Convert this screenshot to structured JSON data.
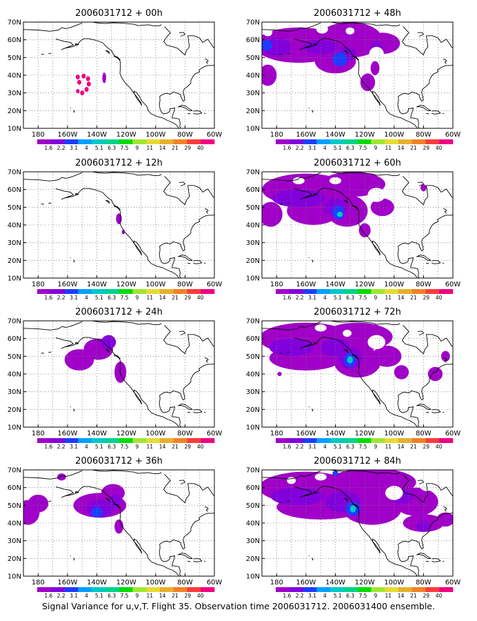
{
  "caption": "Signal Variance for u,v,T. Flight 35. Observation time 2006031712. 2006031400 ensemble.",
  "chart_data": {
    "type": "contour-map",
    "lat_ticks": [
      "70N",
      "60N",
      "50N",
      "40N",
      "30N",
      "20N",
      "10N"
    ],
    "lon_ticks": [
      "180",
      "160W",
      "140W",
      "120W",
      "100W",
      "80W",
      "60W"
    ],
    "xlim": [
      -190,
      -60
    ],
    "ylim": [
      10,
      70
    ],
    "grid": "dotted",
    "colorbar": {
      "labels": [
        "1.6",
        "2.2",
        "3.1",
        "4",
        "5.1",
        "6.3",
        "7.5",
        "9",
        "11",
        "14",
        "21",
        "29",
        "40"
      ],
      "colors": [
        "#a000c8",
        "#8200dc",
        "#1e3cff",
        "#00a0ff",
        "#00c8c8",
        "#00d28c",
        "#00dc00",
        "#a0e632",
        "#e6dc32",
        "#e6af2d",
        "#f08228",
        "#fa3c3c",
        "#f00082"
      ]
    },
    "panels": [
      {
        "title": "2006031712 + 00h",
        "lead": 0,
        "blobs": [
          {
            "lon": -152,
            "lat": 36,
            "rx": 1.4,
            "ry": 1.4,
            "level": 12
          },
          {
            "lon": -153,
            "lat": 39,
            "rx": 1.4,
            "ry": 1.4,
            "level": 12
          },
          {
            "lon": -149,
            "lat": 39.5,
            "rx": 1.4,
            "ry": 1.4,
            "level": 12
          },
          {
            "lon": -146,
            "lat": 38,
            "rx": 1.4,
            "ry": 1.4,
            "level": 12
          },
          {
            "lon": -145.5,
            "lat": 35,
            "rx": 1.4,
            "ry": 1.4,
            "level": 12
          },
          {
            "lon": -147,
            "lat": 32,
            "rx": 1.4,
            "ry": 1.4,
            "level": 12
          },
          {
            "lon": -150,
            "lat": 30,
            "rx": 1.4,
            "ry": 1.4,
            "level": 12
          },
          {
            "lon": -153,
            "lat": 31,
            "rx": 1.2,
            "ry": 1.2,
            "level": 12
          },
          {
            "lon": -135,
            "lat": 38.5,
            "rx": 1.3,
            "ry": 3,
            "level": 0
          }
        ]
      },
      {
        "title": "2006031712 + 12h",
        "lead": 12,
        "blobs": [
          {
            "lon": -125,
            "lat": 43.5,
            "rx": 2,
            "ry": 3,
            "level": 0
          },
          {
            "lon": -122,
            "lat": 36,
            "rx": 1,
            "ry": 1.3,
            "level": 0
          }
        ]
      },
      {
        "title": "2006031712 + 24h",
        "lead": 24,
        "blobs": [
          {
            "lon": -152,
            "lat": 48,
            "rx": 10,
            "ry": 6,
            "level": 0
          },
          {
            "lon": -139,
            "lat": 54,
            "rx": 10,
            "ry": 6,
            "level": 0
          },
          {
            "lon": -132,
            "lat": 58,
            "rx": 5,
            "ry": 4,
            "level": 1
          },
          {
            "lon": -124,
            "lat": 41,
            "rx": 4,
            "ry": 6,
            "level": 0
          }
        ]
      },
      {
        "title": "2006031712 + 36h",
        "lead": 36,
        "blobs": [
          {
            "lon": -187,
            "lat": 46,
            "rx": 8,
            "ry": 7,
            "level": 0
          },
          {
            "lon": -180,
            "lat": 51,
            "rx": 7,
            "ry": 5,
            "level": 0
          },
          {
            "lon": -138,
            "lat": 50,
            "rx": 18,
            "ry": 7,
            "level": 0
          },
          {
            "lon": -129,
            "lat": 57,
            "rx": 8,
            "ry": 5,
            "level": 0
          },
          {
            "lon": -138,
            "lat": 48,
            "rx": 9,
            "ry": 5,
            "level": 1
          },
          {
            "lon": -140,
            "lat": 46,
            "rx": 4,
            "ry": 3,
            "level": 2
          },
          {
            "lon": -128,
            "lat": 52,
            "rx": 4,
            "ry": 4,
            "level": 1
          },
          {
            "lon": -125,
            "lat": 38,
            "rx": 3,
            "ry": 4,
            "level": 0
          },
          {
            "lon": -164,
            "lat": 66,
            "rx": 3,
            "ry": 2,
            "level": 0
          }
        ]
      },
      {
        "title": "2006031712 + 48h",
        "lead": 48,
        "blobs": [
          {
            "lon": -165,
            "lat": 57,
            "rx": 30,
            "ry": 10,
            "level": 0
          },
          {
            "lon": -130,
            "lat": 60,
            "rx": 22,
            "ry": 10,
            "level": 0
          },
          {
            "lon": -108,
            "lat": 58,
            "rx": 12,
            "ry": 6,
            "level": 0
          },
          {
            "lon": -140,
            "lat": 48,
            "rx": 14,
            "ry": 7,
            "level": 0
          },
          {
            "lon": -186,
            "lat": 40,
            "rx": 6,
            "ry": 6,
            "level": 0
          },
          {
            "lon": -118,
            "lat": 36,
            "rx": 5,
            "ry": 5,
            "level": 0
          },
          {
            "lon": -113,
            "lat": 44,
            "rx": 3,
            "ry": 4,
            "level": 0
          },
          {
            "lon": -180,
            "lat": 56,
            "rx": 10,
            "ry": 5,
            "level": 1
          },
          {
            "lon": -187,
            "lat": 57,
            "rx": 4,
            "ry": 3,
            "level": 2
          },
          {
            "lon": -150,
            "lat": 56,
            "rx": 12,
            "ry": 4,
            "level": 1
          },
          {
            "lon": -132,
            "lat": 52,
            "rx": 6,
            "ry": 4,
            "level": 1
          },
          {
            "lon": -137,
            "lat": 49,
            "rx": 5,
            "ry": 4,
            "level": 2
          },
          {
            "lon": -112,
            "lat": 56,
            "rx": 4,
            "ry": 3,
            "level": 1
          }
        ],
        "holes": [
          {
            "lon": -149,
            "lat": 66,
            "rx": 4,
            "ry": 2.5
          },
          {
            "lon": -130,
            "lat": 65,
            "rx": 3,
            "ry": 2
          },
          {
            "lon": -112,
            "lat": 52,
            "rx": 5,
            "ry": 4
          },
          {
            "lon": -186,
            "lat": 64,
            "rx": 3,
            "ry": 2
          }
        ]
      },
      {
        "title": "2006031712 + 60h",
        "lead": 60,
        "blobs": [
          {
            "lon": -160,
            "lat": 60,
            "rx": 30,
            "ry": 9,
            "level": 0
          },
          {
            "lon": -128,
            "lat": 63,
            "rx": 22,
            "ry": 7,
            "level": 0
          },
          {
            "lon": -155,
            "lat": 48,
            "rx": 18,
            "ry": 8,
            "level": 0
          },
          {
            "lon": -132,
            "lat": 48,
            "rx": 14,
            "ry": 9,
            "level": 0
          },
          {
            "lon": -184,
            "lat": 46,
            "rx": 8,
            "ry": 7,
            "level": 0
          },
          {
            "lon": -108,
            "lat": 50,
            "rx": 8,
            "ry": 5,
            "level": 0
          },
          {
            "lon": -120,
            "lat": 37,
            "rx": 4,
            "ry": 4,
            "level": 0
          },
          {
            "lon": -80,
            "lat": 61,
            "rx": 2,
            "ry": 2,
            "level": 0
          },
          {
            "lon": -165,
            "lat": 55,
            "rx": 18,
            "ry": 5,
            "level": 1
          },
          {
            "lon": -140,
            "lat": 50,
            "rx": 8,
            "ry": 5,
            "level": 1
          },
          {
            "lon": -138,
            "lat": 47,
            "rx": 4,
            "ry": 4,
            "level": 2
          },
          {
            "lon": -137,
            "lat": 46,
            "rx": 2,
            "ry": 1.5,
            "level": 4
          }
        ],
        "holes": [
          {
            "lon": -112,
            "lat": 57,
            "rx": 6,
            "ry": 4
          },
          {
            "lon": -165,
            "lat": 65,
            "rx": 4,
            "ry": 2
          },
          {
            "lon": -140,
            "lat": 65,
            "rx": 4,
            "ry": 2
          }
        ]
      },
      {
        "title": "2006031712 + 72h",
        "lead": 72,
        "blobs": [
          {
            "lon": -160,
            "lat": 60,
            "rx": 32,
            "ry": 9,
            "level": 0
          },
          {
            "lon": -125,
            "lat": 61,
            "rx": 24,
            "ry": 8,
            "level": 0
          },
          {
            "lon": -160,
            "lat": 49,
            "rx": 25,
            "ry": 7,
            "level": 0
          },
          {
            "lon": -125,
            "lat": 47,
            "rx": 16,
            "ry": 9,
            "level": 0
          },
          {
            "lon": -105,
            "lat": 50,
            "rx": 10,
            "ry": 6,
            "level": 0
          },
          {
            "lon": -95,
            "lat": 41,
            "rx": 5,
            "ry": 4,
            "level": 0
          },
          {
            "lon": -72,
            "lat": 40,
            "rx": 5,
            "ry": 4,
            "level": 0
          },
          {
            "lon": -65,
            "lat": 50,
            "rx": 3,
            "ry": 3,
            "level": 0
          },
          {
            "lon": -178,
            "lat": 40,
            "rx": 1.5,
            "ry": 1.2,
            "level": 0
          },
          {
            "lon": -170,
            "lat": 55,
            "rx": 15,
            "ry": 5,
            "level": 1
          },
          {
            "lon": -140,
            "lat": 55,
            "rx": 10,
            "ry": 5,
            "level": 1
          },
          {
            "lon": -130,
            "lat": 49,
            "rx": 8,
            "ry": 6,
            "level": 1
          },
          {
            "lon": -130,
            "lat": 48,
            "rx": 4,
            "ry": 4,
            "level": 2
          },
          {
            "lon": -130,
            "lat": 48,
            "rx": 2,
            "ry": 2,
            "level": 4
          }
        ],
        "holes": [
          {
            "lon": -112,
            "lat": 58,
            "rx": 6,
            "ry": 4
          },
          {
            "lon": -150,
            "lat": 66,
            "rx": 4,
            "ry": 2
          },
          {
            "lon": -132,
            "lat": 63,
            "rx": 3,
            "ry": 2
          }
        ]
      },
      {
        "title": "2006031712 + 84h",
        "lead": 84,
        "blobs": [
          {
            "lon": -160,
            "lat": 60,
            "rx": 32,
            "ry": 9,
            "level": 0
          },
          {
            "lon": -115,
            "lat": 63,
            "rx": 30,
            "ry": 8,
            "level": 0
          },
          {
            "lon": -150,
            "lat": 49,
            "rx": 30,
            "ry": 7,
            "level": 0
          },
          {
            "lon": -115,
            "lat": 48,
            "rx": 20,
            "ry": 9,
            "level": 0
          },
          {
            "lon": -85,
            "lat": 52,
            "rx": 15,
            "ry": 8,
            "level": 0
          },
          {
            "lon": -80,
            "lat": 40,
            "rx": 14,
            "ry": 5,
            "level": 0
          },
          {
            "lon": -65,
            "lat": 42,
            "rx": 6,
            "ry": 4,
            "level": 0
          },
          {
            "lon": -166,
            "lat": 55,
            "rx": 18,
            "ry": 5,
            "level": 1
          },
          {
            "lon": -135,
            "lat": 52,
            "rx": 12,
            "ry": 6,
            "level": 1
          },
          {
            "lon": -128,
            "lat": 48,
            "rx": 5,
            "ry": 4,
            "level": 2
          },
          {
            "lon": -128,
            "lat": 48,
            "rx": 2,
            "ry": 2,
            "level": 4
          },
          {
            "lon": -140,
            "lat": 68,
            "rx": 2,
            "ry": 1.5,
            "level": 2
          },
          {
            "lon": -80,
            "lat": 38,
            "rx": 5,
            "ry": 3,
            "level": 1
          },
          {
            "lon": -95,
            "lat": 55,
            "rx": 8,
            "ry": 4,
            "level": 1
          }
        ],
        "holes": [
          {
            "lon": -100,
            "lat": 57,
            "rx": 6,
            "ry": 4
          },
          {
            "lon": -78,
            "lat": 62,
            "rx": 5,
            "ry": 4
          },
          {
            "lon": -150,
            "lat": 66,
            "rx": 4,
            "ry": 2
          },
          {
            "lon": -170,
            "lat": 64,
            "rx": 3,
            "ry": 2
          }
        ]
      }
    ]
  }
}
